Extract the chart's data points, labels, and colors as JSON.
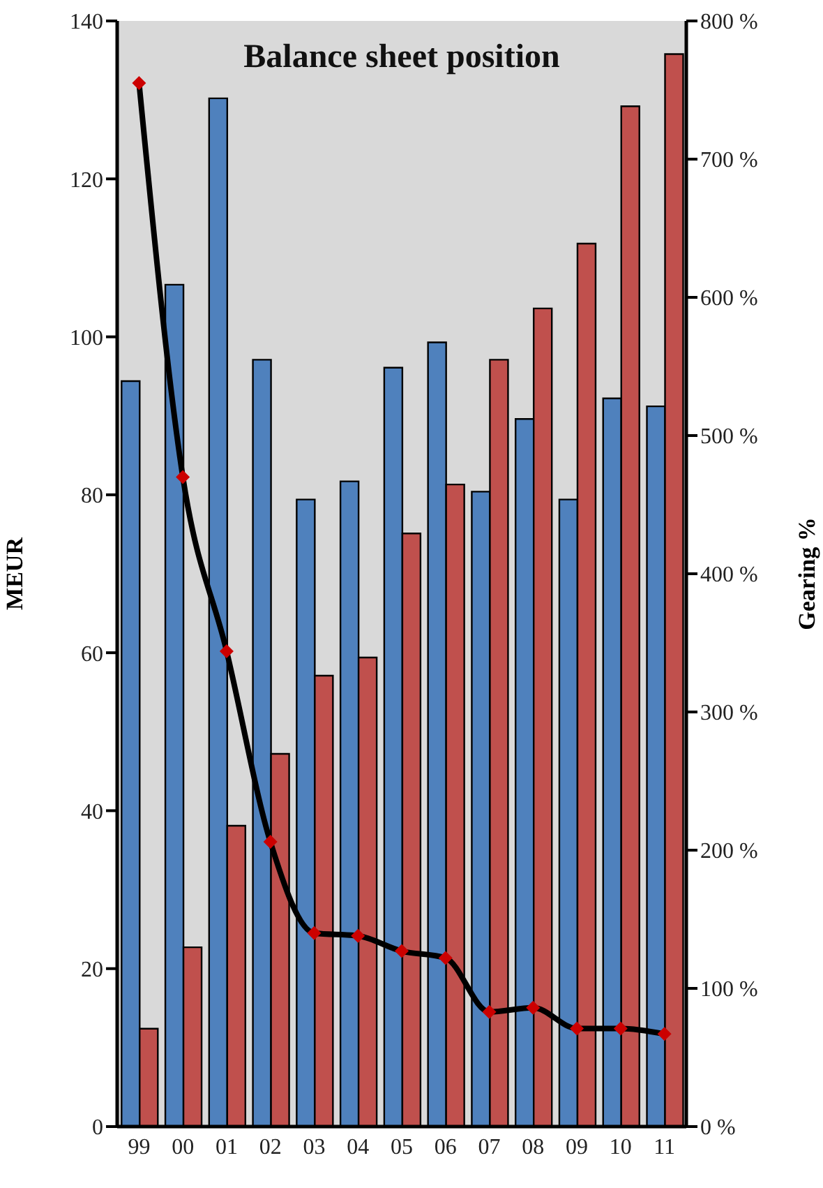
{
  "chart_data": {
    "type": "bar",
    "title": "Balance sheet position",
    "ylabel": "MEUR",
    "y2label": "Gearing %",
    "categories": [
      "99",
      "00",
      "01",
      "02",
      "03",
      "04",
      "05",
      "06",
      "07",
      "08",
      "09",
      "10",
      "11"
    ],
    "series": [
      {
        "color": "#4f81bd",
        "values": [
          94.4,
          106.6,
          130.2,
          97.1,
          79.4,
          81.7,
          96.1,
          99.3,
          80.4,
          89.6,
          79.4,
          92.2,
          91.2
        ]
      },
      {
        "color": "#c0504d",
        "values": [
          12.4,
          22.7,
          38.1,
          47.2,
          57.1,
          59.4,
          75.1,
          81.3,
          97.1,
          103.6,
          111.8,
          129.2,
          135.8
        ]
      },
      {
        "type": "line",
        "axis": "y2",
        "color": "#000000",
        "marker": "diamond",
        "values": [
          755,
          470,
          344,
          206,
          140,
          138,
          127,
          122,
          83,
          86,
          71,
          71,
          67
        ]
      }
    ],
    "ylim": [
      0,
      140
    ],
    "yticks": [
      0,
      20,
      40,
      60,
      80,
      100,
      120,
      140
    ],
    "y2lim": [
      0,
      800
    ],
    "y2ticks": [
      {
        "value": 0,
        "label": "0 %"
      },
      {
        "value": 100,
        "label": "100 %"
      },
      {
        "value": 200,
        "label": "200 %"
      },
      {
        "value": 300,
        "label": "300 %"
      },
      {
        "value": 400,
        "label": "400 %"
      },
      {
        "value": 500,
        "label": "500 %"
      },
      {
        "value": 600,
        "label": "600 %"
      },
      {
        "value": 700,
        "label": "700 %"
      },
      {
        "value": 800,
        "label": "800 %"
      }
    ]
  }
}
